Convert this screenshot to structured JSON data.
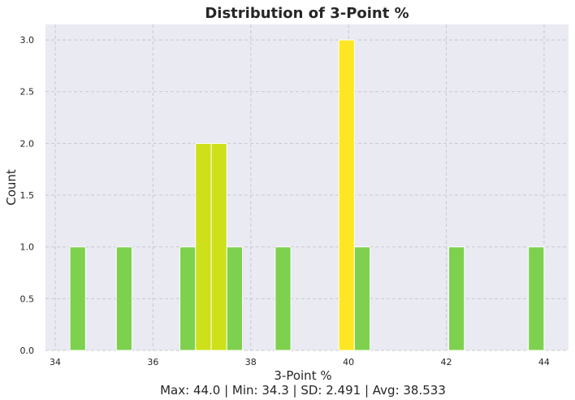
{
  "chart_data": {
    "type": "bar",
    "title": "Distribution of 3-Point %",
    "xlabel": "3-Point %",
    "ylabel": "Count",
    "stats_text": "Max: 44.0 | Min: 34.3 | SD: 2.491 | Avg: 38.533",
    "xlim": [
      33.8,
      44.5
    ],
    "ylim": [
      0,
      3.15
    ],
    "xticks": [
      34,
      36,
      38,
      40,
      42,
      44
    ],
    "yticks": [
      0.0,
      0.5,
      1.0,
      1.5,
      2.0,
      2.5,
      3.0
    ],
    "grid": true,
    "bins": [
      {
        "x0": 34.3,
        "x1": 34.62,
        "count": 1,
        "color": "#7ed14e"
      },
      {
        "x0": 35.25,
        "x1": 35.57,
        "count": 1,
        "color": "#7ed14e"
      },
      {
        "x0": 36.55,
        "x1": 36.87,
        "count": 1,
        "color": "#7ed14e"
      },
      {
        "x0": 36.87,
        "x1": 37.19,
        "count": 2,
        "color": "#cde01a"
      },
      {
        "x0": 37.19,
        "x1": 37.51,
        "count": 2,
        "color": "#cde01a"
      },
      {
        "x0": 37.51,
        "x1": 37.83,
        "count": 1,
        "color": "#7ed14e"
      },
      {
        "x0": 38.5,
        "x1": 38.82,
        "count": 1,
        "color": "#7ed14e"
      },
      {
        "x0": 39.8,
        "x1": 40.12,
        "count": 3,
        "color": "#fde725"
      },
      {
        "x0": 40.12,
        "x1": 40.44,
        "count": 1,
        "color": "#7ed14e"
      },
      {
        "x0": 42.05,
        "x1": 42.37,
        "count": 1,
        "color": "#7ed14e"
      },
      {
        "x0": 43.68,
        "x1": 44.0,
        "count": 1,
        "color": "#7ed14e"
      }
    ],
    "colors": {
      "plot_bg": "#eaeaf2",
      "grid": "#c8c8d0",
      "bar_edge": "#ffffff"
    }
  }
}
